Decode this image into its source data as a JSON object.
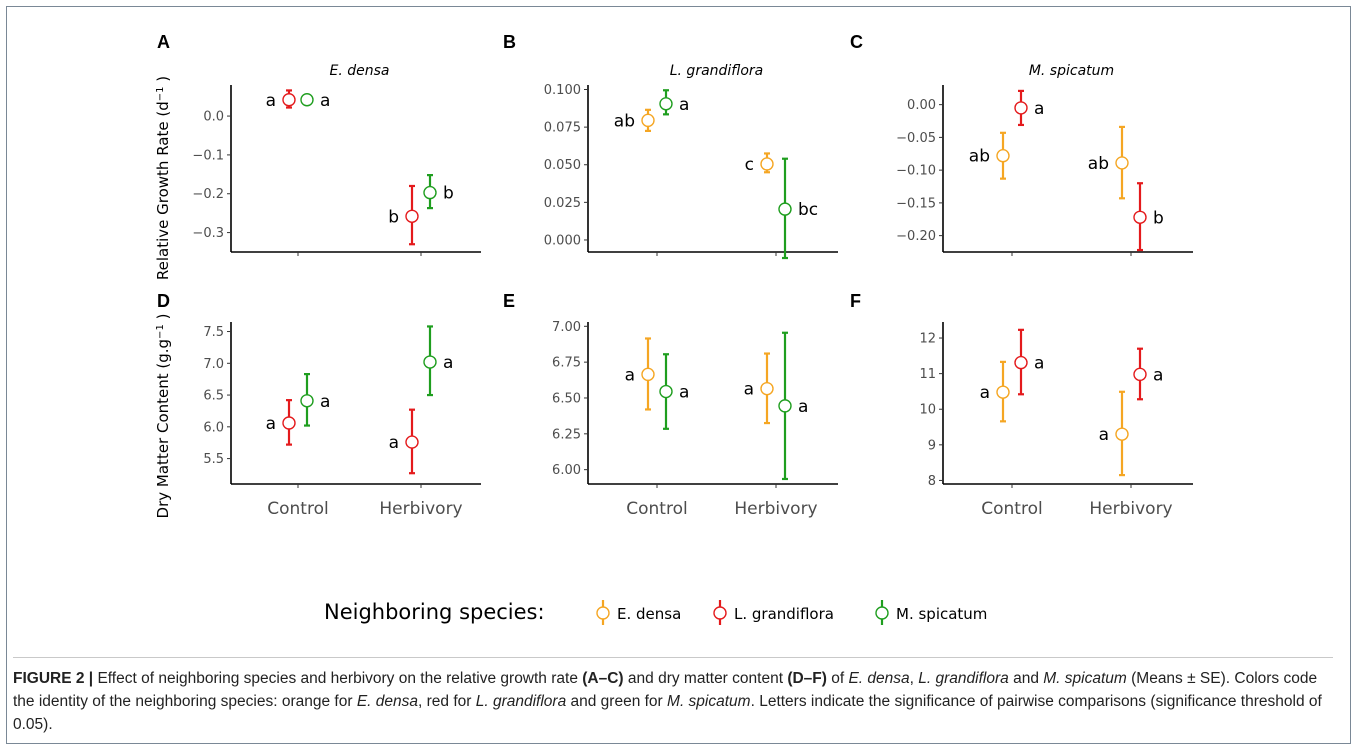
{
  "figure": {
    "caption_label": "FIGURE 2 |",
    "caption_parts": [
      {
        "t": " Effect of neighboring species and herbivory on the relative growth rate ",
        "s": "n"
      },
      {
        "t": "(A–C)",
        "s": "b"
      },
      {
        "t": " and dry matter content ",
        "s": "n"
      },
      {
        "t": "(D–F)",
        "s": "b"
      },
      {
        "t": " of ",
        "s": "n"
      },
      {
        "t": "E. densa",
        "s": "i"
      },
      {
        "t": ", ",
        "s": "n"
      },
      {
        "t": "L. grandiflora",
        "s": "i"
      },
      {
        "t": " and ",
        "s": "n"
      },
      {
        "t": "M. spicatum",
        "s": "i"
      },
      {
        "t": " (Means ± SE). Colors code the identity of the neighboring species: orange for ",
        "s": "n"
      },
      {
        "t": "E. densa",
        "s": "i"
      },
      {
        "t": ", red for ",
        "s": "n"
      },
      {
        "t": "L. grandiflora",
        "s": "i"
      },
      {
        "t": " and green for ",
        "s": "n"
      },
      {
        "t": "M. spicatum",
        "s": "i"
      },
      {
        "t": ". Letters indicate the significance of pairwise comparisons (significance threshold of 0.05).",
        "s": "n"
      }
    ]
  },
  "legend": {
    "title": "Neighboring species:",
    "entries": [
      {
        "label": "E. densa",
        "color": "#f5a623"
      },
      {
        "label": "L. grandiflora",
        "color": "#e41a1c"
      },
      {
        "label": "M. spicatum",
        "color": "#1f9e1f"
      }
    ]
  },
  "ylabels": {
    "top": "Relative Growth Rate (d",
    "top_sup": "−1",
    "top_end": " )",
    "bottom": "Dry Matter Content (g.g",
    "bottom_sup": "−1",
    "bottom_end": " )"
  },
  "chart_data": [
    {
      "type": "scatter",
      "panel": "A",
      "title": "E. densa",
      "categories": [
        "Control",
        "Herbivory"
      ],
      "ylim": [
        -0.35,
        0.08
      ],
      "yticks": [
        0.0,
        -0.1,
        -0.2,
        -0.3
      ],
      "tick_labels": [
        "0.0",
        "−0.1",
        "−0.2",
        "−0.3"
      ],
      "series": [
        {
          "color": "#e41a1c",
          "points": [
            {
              "x": "Control",
              "mean": 0.042,
              "lo": 0.022,
              "hi": 0.066,
              "letter": "a",
              "side": "left"
            },
            {
              "x": "Herbivory",
              "mean": -0.258,
              "lo": -0.33,
              "hi": -0.18,
              "letter": "b",
              "side": "left"
            }
          ]
        },
        {
          "color": "#1f9e1f",
          "points": [
            {
              "x": "Control",
              "mean": 0.042,
              "lo": 0.032,
              "hi": 0.053,
              "letter": "a",
              "side": "right"
            },
            {
              "x": "Herbivory",
              "mean": -0.197,
              "lo": -0.237,
              "hi": -0.152,
              "letter": "b",
              "side": "right"
            }
          ]
        }
      ]
    },
    {
      "type": "scatter",
      "panel": "B",
      "title": "L. grandiflora",
      "categories": [
        "Control",
        "Herbivory"
      ],
      "ylim": [
        -0.008,
        0.103
      ],
      "yticks": [
        0.0,
        0.025,
        0.05,
        0.075,
        0.1
      ],
      "tick_labels": [
        "0.000",
        "0.025",
        "0.050",
        "0.075",
        "0.100"
      ],
      "series": [
        {
          "color": "#f5a623",
          "points": [
            {
              "x": "Control",
              "mean": 0.0795,
              "lo": 0.0725,
              "hi": 0.0865,
              "letter": "ab",
              "side": "left"
            },
            {
              "x": "Herbivory",
              "mean": 0.0505,
              "lo": 0.045,
              "hi": 0.0575,
              "letter": "c",
              "side": "left"
            }
          ]
        },
        {
          "color": "#1f9e1f",
          "points": [
            {
              "x": "Control",
              "mean": 0.0905,
              "lo": 0.0835,
              "hi": 0.0995,
              "letter": "a",
              "side": "right"
            },
            {
              "x": "Herbivory",
              "mean": 0.0205,
              "lo": -0.012,
              "hi": 0.054,
              "letter": "bc",
              "side": "right"
            }
          ]
        }
      ]
    },
    {
      "type": "scatter",
      "panel": "C",
      "title": "M. spicatum",
      "categories": [
        "Control",
        "Herbivory"
      ],
      "ylim": [
        -0.225,
        0.03
      ],
      "yticks": [
        0.0,
        -0.05,
        -0.1,
        -0.15,
        -0.2
      ],
      "tick_labels": [
        "0.00",
        "−0.05",
        "−0.10",
        "−0.15",
        "−0.20"
      ],
      "series": [
        {
          "color": "#f5a623",
          "points": [
            {
              "x": "Control",
              "mean": -0.078,
              "lo": -0.113,
              "hi": -0.043,
              "letter": "ab",
              "side": "left"
            },
            {
              "x": "Herbivory",
              "mean": -0.089,
              "lo": -0.143,
              "hi": -0.034,
              "letter": "ab",
              "side": "left"
            }
          ]
        },
        {
          "color": "#e41a1c",
          "points": [
            {
              "x": "Control",
              "mean": -0.005,
              "lo": -0.031,
              "hi": 0.021,
              "letter": "a",
              "side": "right"
            },
            {
              "x": "Herbivory",
              "mean": -0.172,
              "lo": -0.222,
              "hi": -0.12,
              "letter": "b",
              "side": "right"
            }
          ]
        }
      ]
    },
    {
      "type": "scatter",
      "panel": "D",
      "title": "",
      "categories": [
        "Control",
        "Herbivory"
      ],
      "ylim": [
        5.1,
        7.65
      ],
      "yticks": [
        5.5,
        6.0,
        6.5,
        7.0,
        7.5
      ],
      "tick_labels": [
        "5.5",
        "6.0",
        "6.5",
        "7.0",
        "7.5"
      ],
      "series": [
        {
          "color": "#e41a1c",
          "points": [
            {
              "x": "Control",
              "mean": 6.06,
              "lo": 5.72,
              "hi": 6.42,
              "letter": "a",
              "side": "left"
            },
            {
              "x": "Herbivory",
              "mean": 5.76,
              "lo": 5.27,
              "hi": 6.27,
              "letter": "a",
              "side": "left"
            }
          ]
        },
        {
          "color": "#1f9e1f",
          "points": [
            {
              "x": "Control",
              "mean": 6.41,
              "lo": 6.02,
              "hi": 6.83,
              "letter": "a",
              "side": "right"
            },
            {
              "x": "Herbivory",
              "mean": 7.02,
              "lo": 6.5,
              "hi": 7.58,
              "letter": "a",
              "side": "right"
            }
          ]
        }
      ]
    },
    {
      "type": "scatter",
      "panel": "E",
      "title": "",
      "categories": [
        "Control",
        "Herbivory"
      ],
      "ylim": [
        5.9,
        7.03
      ],
      "yticks": [
        6.0,
        6.25,
        6.5,
        6.75,
        7.0
      ],
      "tick_labels": [
        "6.00",
        "6.25",
        "6.50",
        "6.75",
        "7.00"
      ],
      "series": [
        {
          "color": "#f5a623",
          "points": [
            {
              "x": "Control",
              "mean": 6.665,
              "lo": 6.42,
              "hi": 6.915,
              "letter": "a",
              "side": "left"
            },
            {
              "x": "Herbivory",
              "mean": 6.565,
              "lo": 6.325,
              "hi": 6.81,
              "letter": "a",
              "side": "left"
            }
          ]
        },
        {
          "color": "#1f9e1f",
          "points": [
            {
              "x": "Control",
              "mean": 6.545,
              "lo": 6.285,
              "hi": 6.805,
              "letter": "a",
              "side": "right"
            },
            {
              "x": "Herbivory",
              "mean": 6.445,
              "lo": 5.935,
              "hi": 6.955,
              "letter": "a",
              "side": "right"
            }
          ]
        }
      ]
    },
    {
      "type": "scatter",
      "panel": "F",
      "title": "",
      "categories": [
        "Control",
        "Herbivory"
      ],
      "ylim": [
        7.9,
        12.45
      ],
      "yticks": [
        8,
        9,
        10,
        11,
        12
      ],
      "tick_labels": [
        "8",
        "9",
        "10",
        "11",
        "12"
      ],
      "series": [
        {
          "color": "#f5a623",
          "points": [
            {
              "x": "Control",
              "mean": 10.48,
              "lo": 9.66,
              "hi": 11.33,
              "letter": "a",
              "side": "left"
            },
            {
              "x": "Herbivory",
              "mean": 9.3,
              "lo": 8.15,
              "hi": 10.49,
              "letter": "a",
              "side": "left"
            }
          ]
        },
        {
          "color": "#e41a1c",
          "points": [
            {
              "x": "Control",
              "mean": 11.31,
              "lo": 10.42,
              "hi": 12.23,
              "letter": "a",
              "side": "right"
            },
            {
              "x": "Herbivory",
              "mean": 10.98,
              "lo": 10.28,
              "hi": 11.7,
              "letter": "a",
              "side": "right"
            }
          ]
        }
      ]
    }
  ]
}
